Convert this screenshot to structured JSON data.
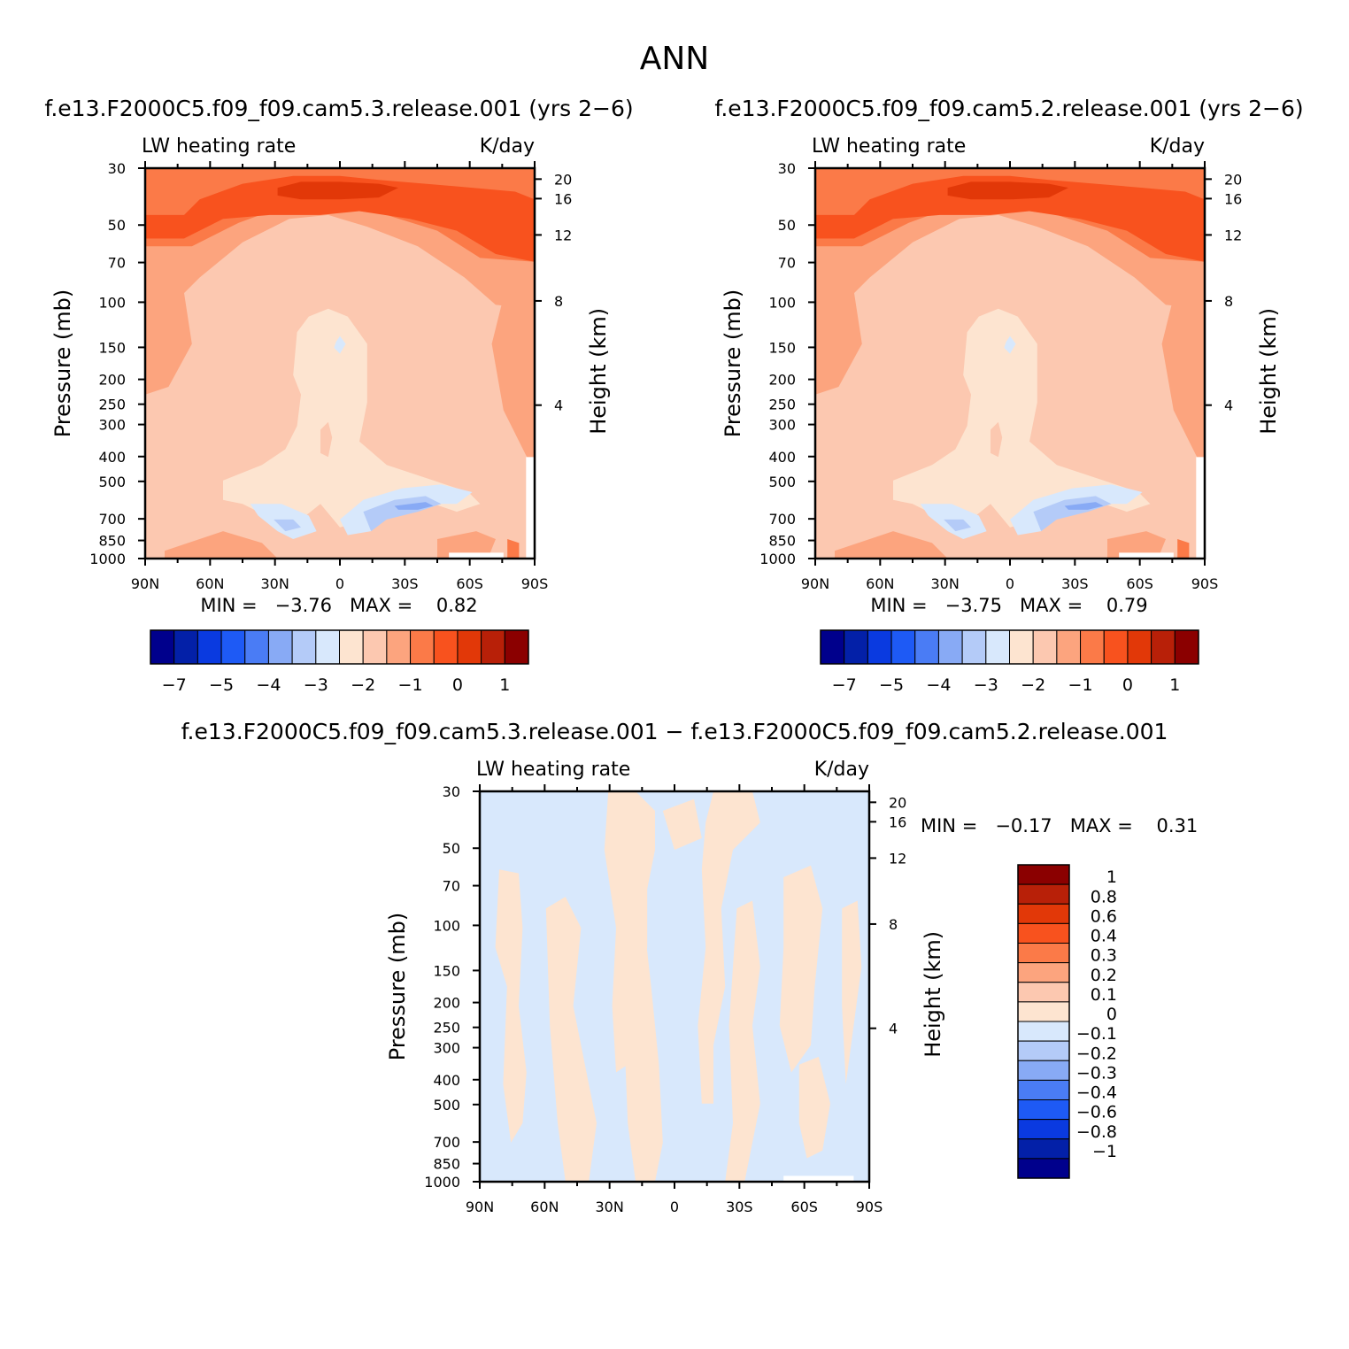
{
  "figure": {
    "title": "ANN",
    "units": "K/day",
    "variable": "LW heating rate"
  },
  "panels": [
    {
      "id": "test",
      "title": "f.e13.F2000C5.f09_f09.cam5.3.release.001 (yrs 2−6)",
      "left_label": "LW heating rate",
      "right_label": "K/day",
      "ylabel": "Pressure (mb)",
      "ylabel_right": "Height (km)",
      "minmax": "MIN =   −3.76   MAX =    0.82"
    },
    {
      "id": "control",
      "title": "f.e13.F2000C5.f09_f09.cam5.2.release.001 (yrs 2−6)",
      "left_label": "LW heating rate",
      "right_label": "K/day",
      "ylabel": "Pressure (mb)",
      "ylabel_right": "Height (km)",
      "minmax": "MIN =   −3.75   MAX =    0.79"
    },
    {
      "id": "difference",
      "title": "f.e13.F2000C5.f09_f09.cam5.3.release.001 − f.e13.F2000C5.f09_f09.cam5.2.release.001",
      "left_label": "LW heating rate",
      "right_label": "K/day",
      "ylabel": "Pressure (mb)",
      "ylabel_right": "Height (km)",
      "minmax": "MIN =   −0.17   MAX =    0.31"
    }
  ],
  "axes": {
    "x_ticks": [
      "90N",
      "60N",
      "30N",
      "0",
      "30S",
      "60S",
      "90S"
    ],
    "pressure_ticks": [
      "30",
      "50",
      "70",
      "100",
      "150",
      "200",
      "250",
      "300",
      "400",
      "500",
      "700",
      "850",
      "1000"
    ],
    "height_ticks": [
      "20",
      "16",
      "12",
      "8",
      "4"
    ]
  },
  "colorbar_main": {
    "labels": [
      "−7",
      "−5",
      "−4",
      "−3",
      "−2",
      "−1",
      "0",
      "1"
    ],
    "colors": [
      "#00008c",
      "#0320a8",
      "#0a3ae0",
      "#1e5af5",
      "#4a7cf5",
      "#88aaf5",
      "#b4cbf8",
      "#d8e8fc",
      "#fde4d0",
      "#fcc8b0",
      "#fca47e",
      "#fb7a48",
      "#f8521e",
      "#e23808",
      "#b82008",
      "#8b0000"
    ]
  },
  "colorbar_diff": {
    "labels": [
      "1",
      "0.8",
      "0.6",
      "0.4",
      "0.3",
      "0.2",
      "0.1",
      "0",
      "−0.1",
      "−0.2",
      "−0.3",
      "−0.4",
      "−0.6",
      "−0.8",
      "−1"
    ],
    "colors": [
      "#8b0000",
      "#b82008",
      "#e23808",
      "#f8521e",
      "#fb7a48",
      "#fca47e",
      "#fcc8b0",
      "#fde4d0",
      "#d8e8fc",
      "#b4cbf8",
      "#88aaf5",
      "#4a7cf5",
      "#1e5af5",
      "#0a3ae0",
      "#0320a8",
      "#00008c"
    ]
  },
  "chart_data": [
    {
      "type": "heatmap",
      "title": "f.e13.F2000C5.f09_f09.cam5.3.release.001 (yrs 2−6)",
      "xlabel": "",
      "ylabel": "Pressure (mb)",
      "x_categories": [
        "90N",
        "60N",
        "30N",
        "0",
        "30S",
        "60S",
        "90S"
      ],
      "y_levels_mb": [
        30,
        50,
        70,
        100,
        150,
        200,
        250,
        300,
        400,
        500,
        700,
        850,
        1000
      ],
      "ylim_mb": [
        1000,
        30
      ],
      "min": -3.76,
      "max": 0.82,
      "units": "K/day"
    },
    {
      "type": "heatmap",
      "title": "f.e13.F2000C5.f09_f09.cam5.2.release.001 (yrs 2−6)",
      "xlabel": "",
      "ylabel": "Pressure (mb)",
      "x_categories": [
        "90N",
        "60N",
        "30N",
        "0",
        "30S",
        "60S",
        "90S"
      ],
      "y_levels_mb": [
        30,
        50,
        70,
        100,
        150,
        200,
        250,
        300,
        400,
        500,
        700,
        850,
        1000
      ],
      "ylim_mb": [
        1000,
        30
      ],
      "min": -3.75,
      "max": 0.79,
      "units": "K/day"
    },
    {
      "type": "heatmap",
      "title": "f.e13.F2000C5.f09_f09.cam5.3.release.001 − f.e13.F2000C5.f09_f09.cam5.2.release.001",
      "xlabel": "",
      "ylabel": "Pressure (mb)",
      "x_categories": [
        "90N",
        "60N",
        "30N",
        "0",
        "30S",
        "60S",
        "90S"
      ],
      "y_levels_mb": [
        30,
        50,
        70,
        100,
        150,
        200,
        250,
        300,
        400,
        500,
        700,
        850,
        1000
      ],
      "ylim_mb": [
        1000,
        30
      ],
      "min": -0.17,
      "max": 0.31,
      "units": "K/day"
    }
  ]
}
